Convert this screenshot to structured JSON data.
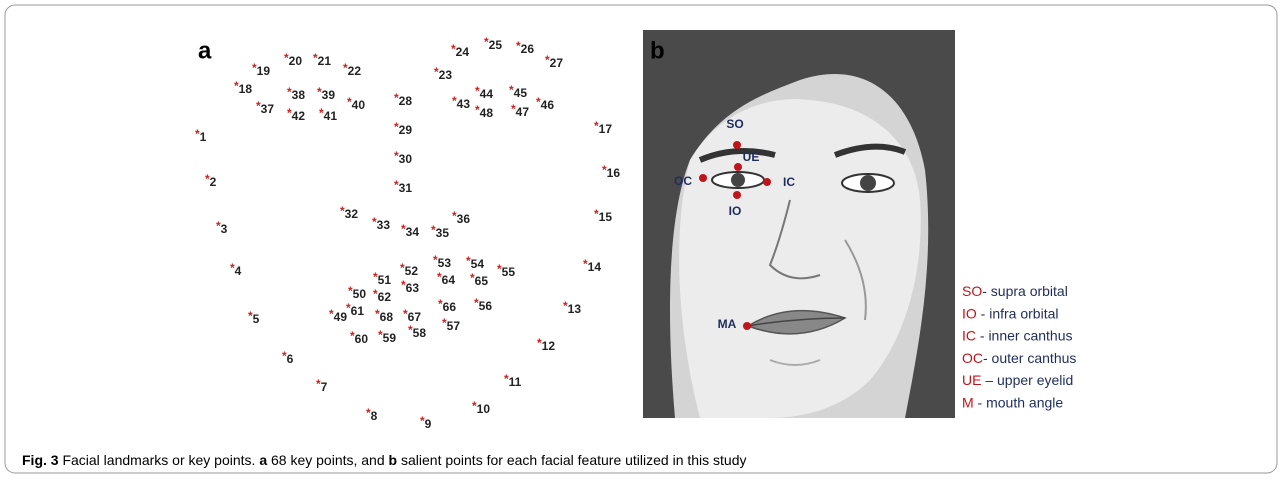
{
  "panel_a": {
    "label": "a",
    "landmarks": [
      "1",
      "2",
      "3",
      "4",
      "5",
      "6",
      "7",
      "8",
      "9",
      "10",
      "11",
      "12",
      "13",
      "14",
      "15",
      "16",
      "17",
      "18",
      "19",
      "20",
      "21",
      "22",
      "23",
      "24",
      "25",
      "26",
      "27",
      "28",
      "29",
      "30",
      "31",
      "32",
      "33",
      "34",
      "35",
      "36",
      "37",
      "38",
      "39",
      "40",
      "41",
      "42",
      "43",
      "44",
      "45",
      "46",
      "47",
      "48",
      "49",
      "50",
      "51",
      "52",
      "53",
      "54",
      "55",
      "56",
      "57",
      "58",
      "59",
      "60",
      "61",
      "62",
      "63",
      "64",
      "65",
      "66",
      "67",
      "68"
    ]
  },
  "panel_b": {
    "label": "b",
    "points": [
      "SO",
      "UE",
      "OC",
      "IC",
      "IO",
      "MA"
    ],
    "legend": [
      {
        "abbr": "SO",
        "text": "- supra orbital"
      },
      {
        "abbr": "IO",
        "text": " - infra orbital"
      },
      {
        "abbr": "IC",
        "text": "  - inner canthus"
      },
      {
        "abbr": "OC",
        "text": "- outer canthus"
      },
      {
        "abbr": "UE",
        "text": " – upper eyelid"
      },
      {
        "abbr": "M",
        "text": " - mouth angle"
      }
    ]
  },
  "caption": {
    "label": "Fig. 3",
    "text1": " Facial landmarks or key points. ",
    "a": "a",
    "text2": " 68 key points, and ",
    "b": "b",
    "text3": " salient points for each facial feature utilized in this study"
  }
}
